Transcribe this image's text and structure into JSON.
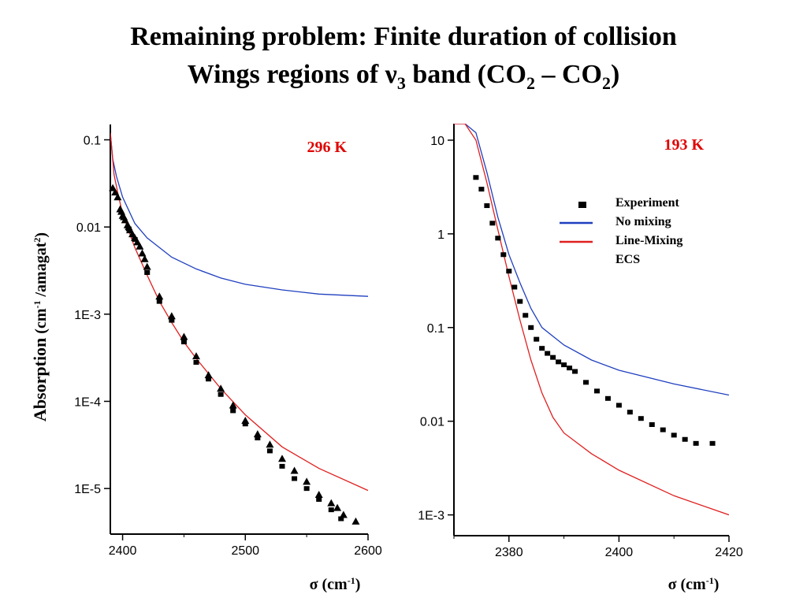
{
  "slide": {
    "title_line1": "Remaining problem: Finite duration of collision",
    "title_line2_pre": "Wings regions of ",
    "title_nu": "ν",
    "title_nu_sub": "3",
    "title_band": " band (CO",
    "title_sub_a": "2",
    "title_dash": " – CO",
    "title_sub_b": "2",
    "title_end": ")"
  },
  "colors": {
    "no_mixing": "#1f3fbf",
    "line_mixing": "#e02020",
    "experiment": "#000000",
    "temp_label": "#e00000"
  },
  "chart_data": [
    {
      "type": "line",
      "temperature_label": "296 K",
      "y_scale": "log",
      "xlim": [
        2390,
        2600
      ],
      "ylim": [
        3e-06,
        0.15
      ],
      "x_ticks": [
        2400,
        2500,
        2600
      ],
      "x_tick_labels": [
        "2400",
        "2500",
        "2600"
      ],
      "y_ticks": [
        0.1,
        0.01,
        0.001,
        0.0001,
        1e-05
      ],
      "y_tick_labels": [
        "0.1",
        "0.01",
        "1E-3",
        "1E-4",
        "1E-5"
      ],
      "xlabel_symbol": "σ",
      "xlabel_unit": " (cm",
      "xlabel_sup": "-1",
      "xlabel_end": ")",
      "ylabel": "Absorption (cm-1/amagat2)",
      "ylabel_main": "Absorption",
      "ylabel_open": " (cm",
      "ylabel_sup1": "-1",
      "ylabel_mid": " /amagat",
      "ylabel_sup2": "2",
      "ylabel_close": ")",
      "series": [
        {
          "kind": "line",
          "color": "no_mixing",
          "x": [
            2390,
            2392,
            2395,
            2400,
            2410,
            2420,
            2440,
            2460,
            2480,
            2500,
            2530,
            2560,
            2600
          ],
          "y": [
            0.12,
            0.06,
            0.038,
            0.022,
            0.011,
            0.0075,
            0.0045,
            0.0033,
            0.0026,
            0.0022,
            0.0019,
            0.0017,
            0.0016
          ]
        },
        {
          "kind": "line",
          "color": "line_mixing",
          "x": [
            2390,
            2393,
            2396,
            2400,
            2405,
            2410,
            2420,
            2430,
            2440,
            2450,
            2460,
            2480,
            2500,
            2530,
            2560,
            2600
          ],
          "y": [
            0.12,
            0.04,
            0.025,
            0.014,
            0.009,
            0.0058,
            0.0028,
            0.0014,
            0.0008,
            0.00048,
            0.00031,
            0.00014,
            7e-05,
            3e-05,
            1.7e-05,
            9.5e-06
          ]
        },
        {
          "kind": "triangle",
          "color": "experiment",
          "x": [
            2392,
            2394,
            2396,
            2398,
            2399,
            2400,
            2401,
            2402,
            2404,
            2405,
            2406,
            2408,
            2410,
            2412,
            2414,
            2416,
            2418,
            2420,
            2430,
            2440,
            2450,
            2460,
            2470,
            2480,
            2490,
            2500,
            2510,
            2520,
            2530,
            2540,
            2550,
            2560,
            2570,
            2575,
            2580,
            2590
          ],
          "y": [
            0.028,
            0.025,
            0.022,
            0.016,
            0.015,
            0.0135,
            0.013,
            0.012,
            0.0105,
            0.01,
            0.0092,
            0.0083,
            0.0075,
            0.0067,
            0.006,
            0.005,
            0.0043,
            0.0035,
            0.0016,
            0.00095,
            0.00055,
            0.00033,
            0.0002,
            0.00014,
            9e-05,
            6e-05,
            4.2e-05,
            3.2e-05,
            2.2e-05,
            1.6e-05,
            1.2e-05,
            8.5e-06,
            6.8e-06,
            6e-06,
            5e-06,
            4.2e-06
          ]
        },
        {
          "kind": "square",
          "color": "experiment",
          "x": [
            2405,
            2410,
            2420,
            2430,
            2440,
            2450,
            2460,
            2470,
            2480,
            2490,
            2500,
            2510,
            2520,
            2530,
            2540,
            2550,
            2560,
            2570,
            2578
          ],
          "y": [
            0.0095,
            0.0072,
            0.003,
            0.0014,
            0.00085,
            0.00048,
            0.00028,
            0.00018,
            0.00012,
            7.8e-05,
            5.5e-05,
            3.8e-05,
            2.7e-05,
            1.8e-05,
            1.3e-05,
            1e-05,
            7.5e-06,
            5.7e-06,
            4.5e-06
          ]
        }
      ]
    },
    {
      "type": "line",
      "temperature_label": "193 K",
      "y_scale": "log",
      "xlim": [
        2370,
        2420
      ],
      "ylim": [
        0.0006,
        15
      ],
      "x_ticks": [
        2380,
        2400,
        2420
      ],
      "x_tick_labels": [
        "2380",
        "2400",
        "2420"
      ],
      "y_ticks": [
        10,
        1,
        0.1,
        0.01,
        0.001
      ],
      "y_tick_labels": [
        "10",
        "1",
        "0.1",
        "0.01",
        "1E-3"
      ],
      "xlabel_symbol": "σ",
      "xlabel_unit": " (cm",
      "xlabel_sup": "-1",
      "xlabel_end": ")",
      "legend": [
        "Experiment",
        "No mixing",
        "Line-Mixing",
        "ECS"
      ],
      "series": [
        {
          "kind": "line",
          "color": "no_mixing",
          "x": [
            2370,
            2372,
            2374,
            2376,
            2378,
            2380,
            2382,
            2384,
            2386,
            2390,
            2395,
            2400,
            2410,
            2420
          ],
          "y": [
            15,
            15,
            12,
            4.5,
            1.5,
            0.6,
            0.3,
            0.16,
            0.1,
            0.065,
            0.045,
            0.035,
            0.025,
            0.019
          ]
        },
        {
          "kind": "line",
          "color": "line_mixing",
          "x": [
            2370,
            2372,
            2374,
            2376,
            2378,
            2380,
            2382,
            2384,
            2386,
            2388,
            2390,
            2395,
            2400,
            2410,
            2420
          ],
          "y": [
            15,
            15,
            10,
            3.5,
            1.1,
            0.35,
            0.12,
            0.045,
            0.02,
            0.011,
            0.0075,
            0.0045,
            0.003,
            0.0016,
            0.001
          ]
        },
        {
          "kind": "square",
          "color": "experiment",
          "x": [
            2374,
            2375,
            2376,
            2377,
            2378,
            2379,
            2380,
            2381,
            2382,
            2383,
            2384,
            2385,
            2386,
            2387,
            2388,
            2389,
            2390,
            2391,
            2392,
            2394,
            2396,
            2398,
            2400,
            2402,
            2404,
            2406,
            2408,
            2410,
            2412,
            2414,
            2417
          ],
          "y": [
            4.0,
            3.0,
            2.0,
            1.3,
            0.9,
            0.6,
            0.4,
            0.27,
            0.19,
            0.135,
            0.1,
            0.075,
            0.06,
            0.053,
            0.048,
            0.043,
            0.04,
            0.037,
            0.034,
            0.026,
            0.021,
            0.0175,
            0.0148,
            0.0125,
            0.0107,
            0.0092,
            0.0081,
            0.0071,
            0.0064,
            0.0058,
            0.0058
          ]
        }
      ]
    }
  ]
}
